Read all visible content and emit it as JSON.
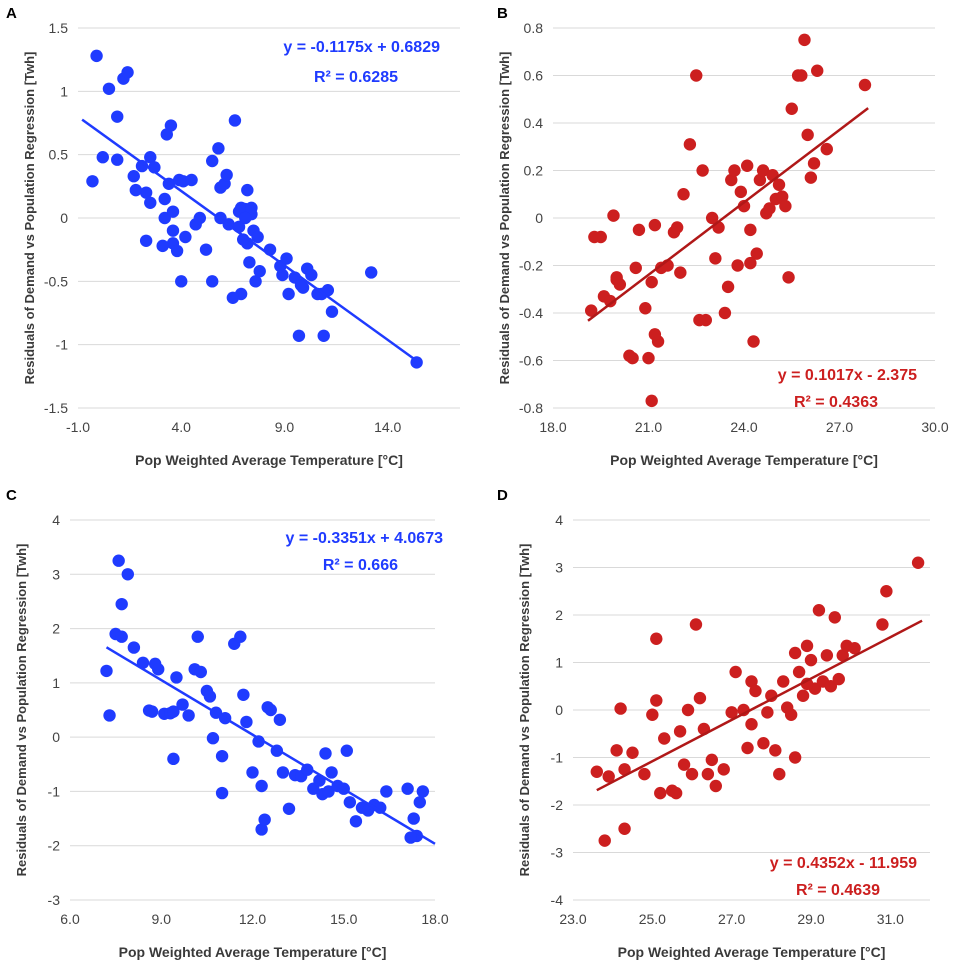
{
  "chart_data": [
    {
      "panel": "A",
      "type": "scatter",
      "title": "",
      "xlabel": "Pop Weighted Average Temperature [°C]",
      "ylabel": "Residuals of Demand vs Population Regression [Twh]",
      "xlim": [
        -1,
        17.5
      ],
      "ylim": [
        -1.5,
        1.5
      ],
      "xticks": [
        -1,
        4,
        9,
        14
      ],
      "xtick_labels": [
        "-1.0",
        "4.0",
        "9.0",
        "14.0"
      ],
      "yticks": [
        -1.5,
        -1,
        -0.5,
        0,
        0.5,
        1,
        1.5
      ],
      "ytick_labels": [
        "-1.5",
        "-1",
        "-0.5",
        "0",
        "0.5",
        "1",
        "1.5"
      ],
      "grid": true,
      "color": "#1f3bff",
      "line_color": "#1f3bff",
      "trendline": {
        "slope": -0.1175,
        "intercept": 0.6829,
        "x_range": [
          -0.8,
          15.4
        ]
      },
      "equation": "y = -0.1175x + 0.6829",
      "r2": "R² = 0.6285",
      "x": [
        -0.3,
        0.2,
        0.5,
        0.9,
        1.2,
        1.4,
        -0.1,
        0.9,
        1.7,
        2.1,
        2.3,
        1.8,
        2.5,
        2.7,
        2.3,
        2.5,
        3.2,
        3.5,
        3.3,
        3.6,
        3.2,
        3.4,
        3.9,
        4.1,
        4.5,
        4.2,
        3.6,
        3.8,
        3.6,
        4.7,
        4.9,
        5.2,
        5.5,
        5.8,
        5.9,
        6.1,
        6.2,
        5.9,
        6.6,
        6.9,
        6.8,
        7.1,
        7.2,
        7.4,
        7.4,
        7.5,
        7.7,
        7.2,
        7.6,
        7.3,
        6.9,
        6.5,
        6.3,
        6.8,
        7.1,
        7.0,
        7.8,
        8.3,
        8.9,
        8.8,
        9.1,
        9.2,
        9.5,
        9.9,
        9.7,
        10.1,
        10.3,
        10.6,
        10.8,
        11.1,
        11.3,
        10.9,
        9.8,
        13.2,
        15.4,
        4.0,
        5.5,
        3.1
      ],
      "y": [
        0.29,
        0.48,
        1.02,
        0.46,
        1.1,
        1.15,
        1.28,
        0.8,
        0.33,
        0.41,
        0.2,
        0.22,
        0.48,
        0.4,
        -0.18,
        0.12,
        0.0,
        0.73,
        0.66,
        0.05,
        0.15,
        0.27,
        0.3,
        0.29,
        0.3,
        -0.15,
        -0.2,
        -0.26,
        -0.1,
        -0.05,
        0.0,
        -0.25,
        0.45,
        0.55,
        0.24,
        0.27,
        0.34,
        0.0,
        0.77,
        0.08,
        0.05,
        0.07,
        0.22,
        0.03,
        0.08,
        -0.1,
        -0.15,
        -0.2,
        -0.5,
        -0.35,
        -0.6,
        -0.63,
        -0.05,
        -0.07,
        0.0,
        -0.17,
        -0.42,
        -0.25,
        -0.45,
        -0.38,
        -0.32,
        -0.6,
        -0.47,
        -0.55,
        -0.93,
        -0.4,
        -0.45,
        -0.6,
        -0.6,
        -0.57,
        -0.74,
        -0.93,
        -0.53,
        -0.43,
        -1.14,
        -0.5,
        -0.5,
        -0.22
      ]
    },
    {
      "panel": "B",
      "type": "scatter",
      "title": "",
      "xlabel": "Pop Weighted Average Temperature [°C]",
      "ylabel": "Residuals of Demand vs Population Regression [Twh]",
      "xlim": [
        18,
        30
      ],
      "ylim": [
        -0.8,
        0.8
      ],
      "xticks": [
        18,
        21,
        24,
        27,
        30
      ],
      "xtick_labels": [
        "18.0",
        "21.0",
        "24.0",
        "27.0",
        "30.0"
      ],
      "yticks": [
        -0.8,
        -0.6,
        -0.4,
        -0.2,
        0,
        0.2,
        0.4,
        0.6,
        0.8
      ],
      "ytick_labels": [
        "-0.8",
        "-0.6",
        "-0.4",
        "-0.2",
        "0",
        "0.2",
        "0.4",
        "0.6",
        "0.8"
      ],
      "grid": true,
      "color": "#cc1f1f",
      "line_color": "#b01818",
      "trendline": {
        "slope": 0.1017,
        "intercept": -2.375,
        "x_range": [
          19.1,
          27.9
        ]
      },
      "equation": "y = 0.1017x - 2.375",
      "r2": "R² = 0.4363",
      "x": [
        19.2,
        19.5,
        19.6,
        19.8,
        19.9,
        20.0,
        20.1,
        20.4,
        20.5,
        20.6,
        20.7,
        20.9,
        21.1,
        21.3,
        21.2,
        21.0,
        21.1,
        21.4,
        21.6,
        21.8,
        21.9,
        22.0,
        22.1,
        22.3,
        22.5,
        22.7,
        22.8,
        23.0,
        23.1,
        23.2,
        23.4,
        23.5,
        23.6,
        23.7,
        23.9,
        24.0,
        24.1,
        24.2,
        24.3,
        24.4,
        24.5,
        24.6,
        24.7,
        24.8,
        24.9,
        25.0,
        25.1,
        25.2,
        25.3,
        25.5,
        25.7,
        25.8,
        26.0,
        26.1,
        26.2,
        26.3,
        26.6,
        27.8,
        19.3,
        20.0,
        21.2,
        23.8,
        25.9,
        22.6,
        24.2,
        25.4
      ],
      "y": [
        -0.39,
        -0.08,
        -0.33,
        -0.35,
        0.01,
        -0.26,
        -0.28,
        -0.58,
        -0.59,
        -0.21,
        -0.05,
        -0.38,
        -0.27,
        -0.52,
        -0.49,
        -0.59,
        -0.77,
        -0.21,
        -0.2,
        -0.06,
        -0.04,
        -0.23,
        0.1,
        0.31,
        0.6,
        0.2,
        -0.43,
        0.0,
        -0.17,
        -0.04,
        -0.4,
        -0.29,
        0.16,
        0.2,
        0.11,
        0.05,
        0.22,
        -0.05,
        -0.52,
        -0.15,
        0.16,
        0.2,
        0.02,
        0.04,
        0.18,
        0.08,
        0.14,
        0.09,
        0.05,
        0.46,
        0.6,
        0.6,
        0.35,
        0.17,
        0.23,
        0.62,
        0.29,
        0.56,
        -0.08,
        -0.25,
        -0.03,
        -0.2,
        0.75,
        -0.43,
        -0.19,
        -0.25
      ]
    },
    {
      "panel": "C",
      "type": "scatter",
      "title": "",
      "xlabel": "Pop Weighted Average Temperature [°C]",
      "ylabel": "Residuals of Demand vs Population Regression [Twh]",
      "xlim": [
        6,
        18
      ],
      "ylim": [
        -3,
        4
      ],
      "xticks": [
        6,
        9,
        12,
        15,
        18
      ],
      "xtick_labels": [
        "6.0",
        "9.0",
        "12.0",
        "15.0",
        "18.0"
      ],
      "yticks": [
        -3,
        -2,
        -1,
        0,
        1,
        2,
        3,
        4
      ],
      "ytick_labels": [
        "-3",
        "-2",
        "-1",
        "0",
        "1",
        "2",
        "3",
        "4"
      ],
      "grid": true,
      "color": "#1f3bff",
      "line_color": "#1f3bff",
      "trendline": {
        "slope": -0.3351,
        "intercept": 4.0673,
        "x_range": [
          7.2,
          18.0
        ]
      },
      "equation": "y = -0.3351x + 4.0673",
      "r2": "R² = 0.666",
      "x": [
        7.2,
        7.3,
        7.5,
        7.6,
        7.7,
        7.7,
        7.9,
        8.1,
        8.4,
        8.6,
        8.7,
        8.8,
        8.9,
        9.1,
        9.3,
        9.4,
        9.5,
        9.7,
        9.9,
        10.1,
        10.2,
        10.3,
        10.5,
        10.6,
        10.7,
        10.8,
        11.0,
        11.1,
        11.4,
        11.6,
        11.7,
        11.8,
        12.0,
        12.2,
        12.3,
        12.4,
        12.5,
        12.6,
        12.8,
        12.9,
        13.0,
        13.2,
        13.4,
        13.6,
        13.8,
        14.0,
        14.2,
        14.3,
        14.5,
        14.6,
        14.8,
        15.0,
        15.2,
        15.4,
        15.6,
        15.8,
        16.0,
        16.2,
        16.4,
        17.1,
        17.3,
        17.5,
        17.6,
        17.4,
        17.2,
        15.1,
        14.4,
        12.3,
        11.0,
        9.4
      ],
      "y": [
        1.22,
        0.4,
        1.9,
        3.25,
        2.45,
        1.85,
        3.0,
        1.65,
        1.37,
        0.49,
        0.47,
        1.35,
        1.25,
        0.43,
        0.44,
        0.47,
        1.1,
        0.6,
        0.4,
        1.25,
        1.85,
        1.2,
        0.85,
        0.75,
        -0.02,
        0.45,
        -0.35,
        0.35,
        1.72,
        1.85,
        0.78,
        0.28,
        -0.65,
        -0.08,
        -1.7,
        -1.52,
        0.55,
        0.5,
        -0.25,
        0.32,
        -0.65,
        -1.32,
        -0.7,
        -0.72,
        -0.6,
        -0.95,
        -0.8,
        -1.05,
        -1.0,
        -0.65,
        -0.9,
        -0.95,
        -1.2,
        -1.55,
        -1.3,
        -1.35,
        -1.25,
        -1.3,
        -1.0,
        -0.95,
        -1.5,
        -1.2,
        -1.0,
        -1.82,
        -1.85,
        -0.25,
        -0.3,
        -0.9,
        -1.03,
        -0.4
      ]
    },
    {
      "panel": "D",
      "type": "scatter",
      "title": "",
      "xlabel": "Pop Weighted Average Temperature [°C]",
      "ylabel": "Residuals of Demand vs Population Regression [Twh]",
      "xlim": [
        23,
        32
      ],
      "ylim": [
        -4,
        4
      ],
      "xticks": [
        23,
        25,
        27,
        29,
        31
      ],
      "xtick_labels": [
        "23.0",
        "25.0",
        "27.0",
        "29.0",
        "31.0"
      ],
      "yticks": [
        -4,
        -3,
        -2,
        -1,
        0,
        1,
        2,
        3,
        4
      ],
      "ytick_labels": [
        "-4",
        "-3",
        "-2",
        "-1",
        "0",
        "1",
        "2",
        "3",
        "4"
      ],
      "grid": true,
      "color": "#cc1f1f",
      "line_color": "#b01818",
      "trendline": {
        "slope": 0.4352,
        "intercept": -11.959,
        "x_range": [
          23.6,
          31.8
        ]
      },
      "equation": "y = 0.4352x - 11.959",
      "r2": "R² = 0.4639",
      "x": [
        23.6,
        23.8,
        23.9,
        24.1,
        24.2,
        24.3,
        24.5,
        24.8,
        25.0,
        25.1,
        25.1,
        25.2,
        25.3,
        25.5,
        25.6,
        25.7,
        25.8,
        26.0,
        26.1,
        26.2,
        26.3,
        26.5,
        26.6,
        26.8,
        27.0,
        27.1,
        27.3,
        27.4,
        27.5,
        27.6,
        27.8,
        27.9,
        28.0,
        28.1,
        28.2,
        28.3,
        28.4,
        28.5,
        28.6,
        28.7,
        28.8,
        28.9,
        29.0,
        29.1,
        29.2,
        29.3,
        29.4,
        29.5,
        29.6,
        29.7,
        29.8,
        29.9,
        30.1,
        30.8,
        31.7,
        30.9,
        28.9,
        28.6,
        27.5,
        26.4,
        24.3,
        25.9
      ],
      "y": [
        -1.3,
        -2.75,
        -1.4,
        -0.85,
        0.03,
        -2.5,
        -0.9,
        -1.35,
        -0.1,
        1.5,
        0.2,
        -1.75,
        -0.6,
        -1.7,
        -1.75,
        -0.45,
        -1.15,
        -1.35,
        1.8,
        0.25,
        -0.4,
        -1.05,
        -1.6,
        -1.25,
        -0.05,
        0.8,
        0.0,
        -0.8,
        0.6,
        0.4,
        -0.7,
        -0.05,
        0.3,
        -0.85,
        -1.35,
        0.6,
        0.05,
        -0.1,
        1.2,
        0.8,
        0.3,
        1.35,
        1.05,
        0.45,
        2.1,
        0.6,
        1.15,
        0.5,
        1.95,
        0.65,
        1.15,
        1.35,
        1.3,
        1.8,
        3.1,
        2.5,
        0.55,
        -1.0,
        -0.3,
        -1.35,
        -1.25,
        0.0
      ]
    }
  ]
}
